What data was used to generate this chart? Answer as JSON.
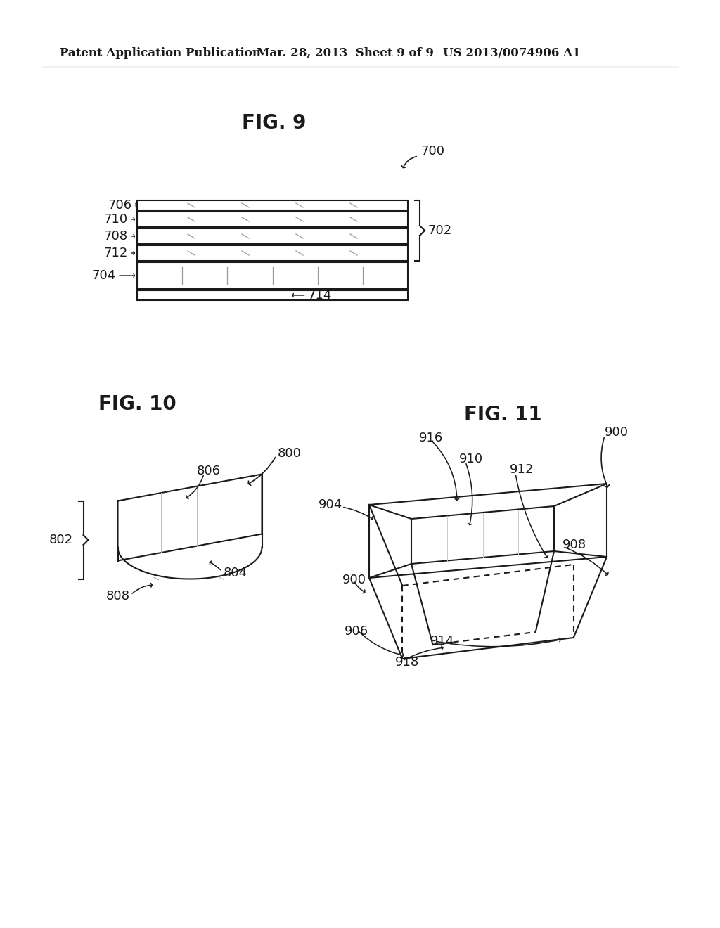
{
  "bg_color": "#ffffff",
  "header_left": "Patent Application Publication",
  "header_mid": "Mar. 28, 2013  Sheet 9 of 9",
  "header_right": "US 2013/0074906 A1",
  "fig9_title": "FIG. 9",
  "fig10_title": "FIG. 10",
  "fig11_title": "FIG. 11",
  "label_color": "#1a1a1a",
  "line_color": "#1a1a1a",
  "line_width": 1.5
}
